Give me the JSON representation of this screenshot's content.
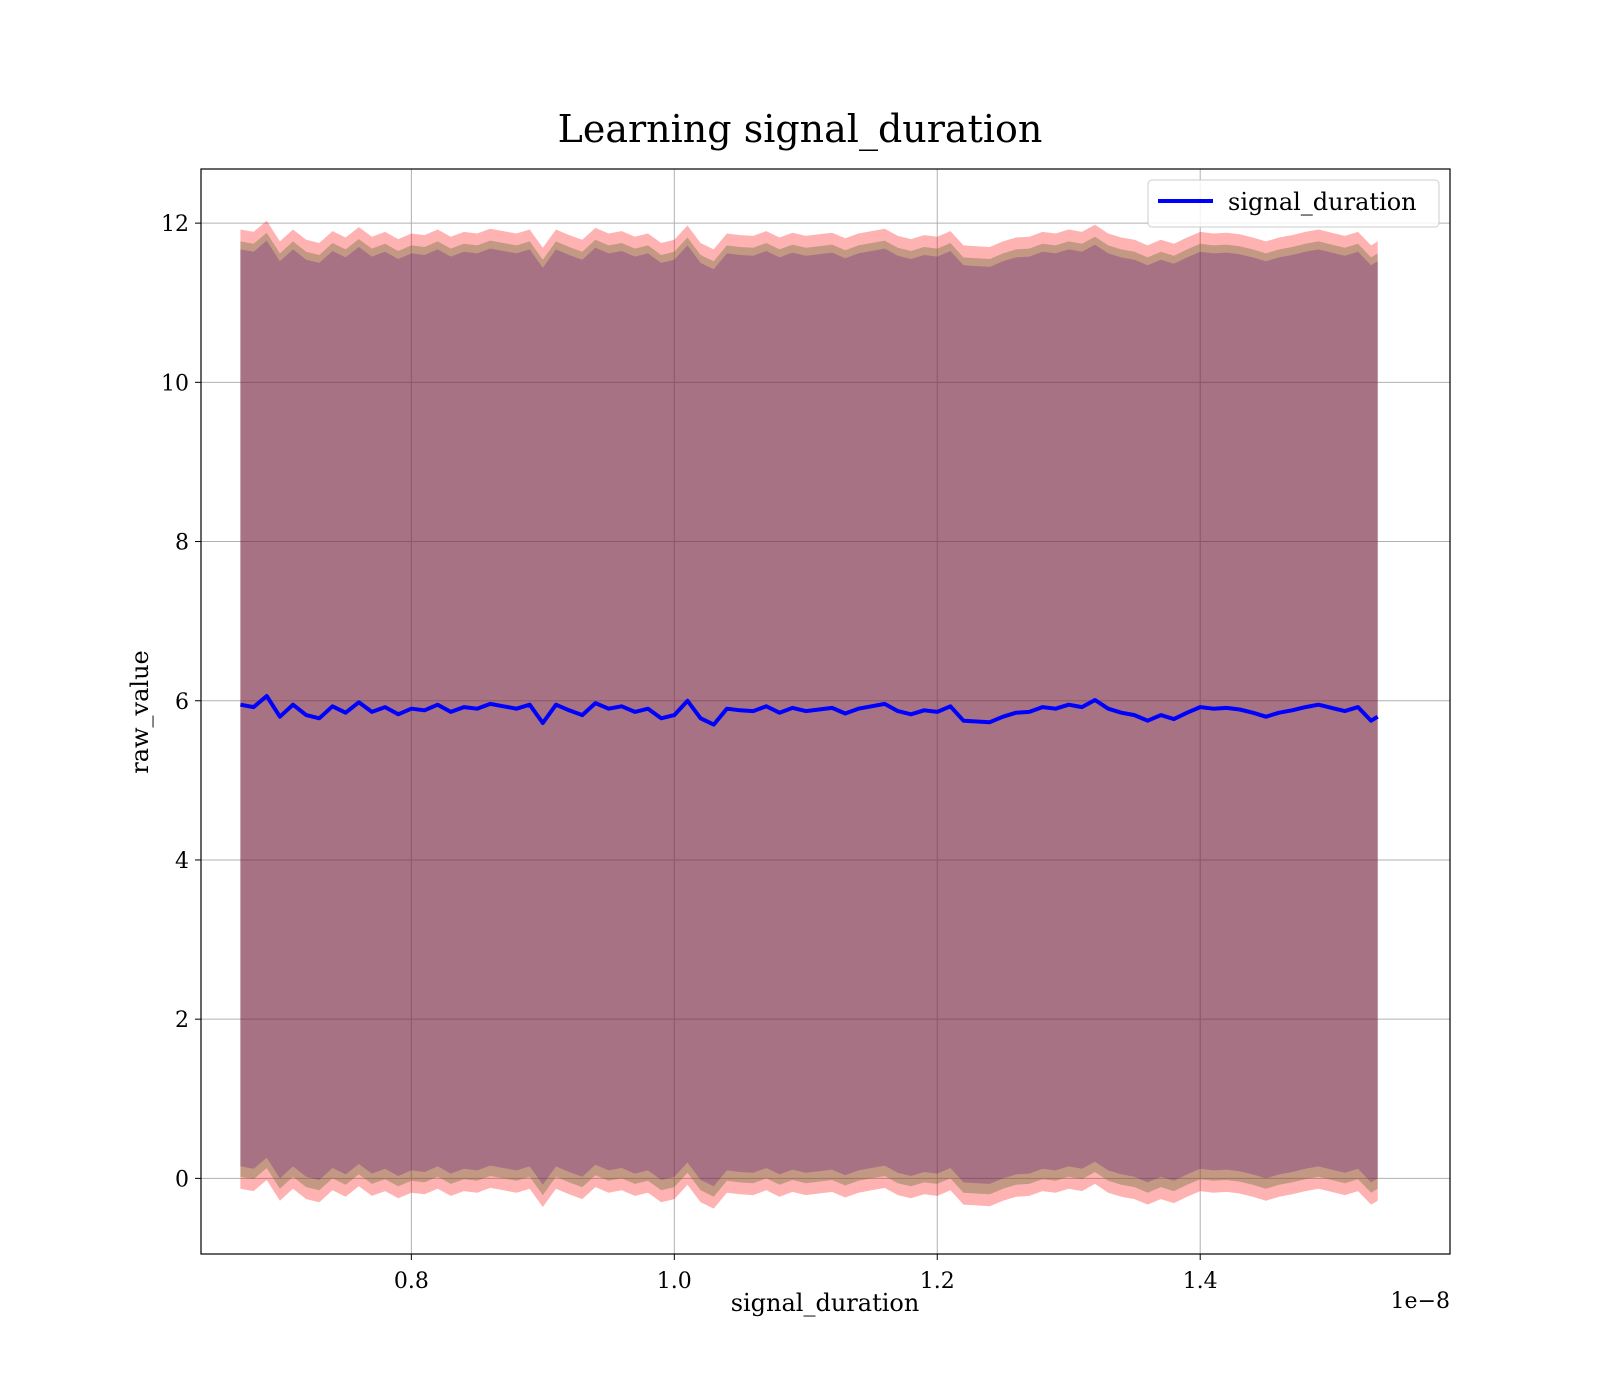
{
  "chart_data": {
    "type": "line",
    "title": "Learning signal_duration",
    "xlabel": "signal_duration",
    "ylabel": "raw_value",
    "x_scale_label": "1e−8",
    "xlim": [
      0.64,
      1.59
    ],
    "ylim": [
      -0.95,
      12.68
    ],
    "x_ticks": [
      {
        "value": 0.8,
        "label": "0.8"
      },
      {
        "value": 1.0,
        "label": "1.0"
      },
      {
        "value": 1.2,
        "label": "1.2"
      },
      {
        "value": 1.4,
        "label": "1.4"
      }
    ],
    "y_ticks": [
      {
        "value": 0,
        "label": "0"
      },
      {
        "value": 2,
        "label": "2"
      },
      {
        "value": 4,
        "label": "4"
      },
      {
        "value": 6,
        "label": "6"
      },
      {
        "value": 8,
        "label": "8"
      },
      {
        "value": 10,
        "label": "10"
      },
      {
        "value": 12,
        "label": "12"
      }
    ],
    "grid": true,
    "legend_position": "top-right",
    "series": [
      {
        "name": "signal_duration",
        "color": "#0000ff",
        "x": [
          0.67,
          0.68,
          0.69,
          0.7,
          0.71,
          0.72,
          0.73,
          0.74,
          0.75,
          0.76,
          0.77,
          0.78,
          0.79,
          0.8,
          0.81,
          0.82,
          0.83,
          0.84,
          0.85,
          0.86,
          0.87,
          0.88,
          0.89,
          0.9,
          0.91,
          0.92,
          0.93,
          0.94,
          0.95,
          0.96,
          0.97,
          0.98,
          0.99,
          1.0,
          1.01,
          1.02,
          1.03,
          1.04,
          1.05,
          1.06,
          1.07,
          1.08,
          1.09,
          1.1,
          1.11,
          1.12,
          1.13,
          1.14,
          1.15,
          1.16,
          1.17,
          1.18,
          1.19,
          1.2,
          1.21,
          1.22,
          1.23,
          1.24,
          1.25,
          1.26,
          1.27,
          1.28,
          1.29,
          1.3,
          1.31,
          1.32,
          1.33,
          1.34,
          1.35,
          1.36,
          1.37,
          1.38,
          1.39,
          1.4,
          1.41,
          1.42,
          1.43,
          1.44,
          1.45,
          1.46,
          1.47,
          1.48,
          1.49,
          1.5,
          1.51,
          1.52,
          1.53,
          1.535
        ],
        "y": [
          5.95,
          5.92,
          6.06,
          5.8,
          5.95,
          5.82,
          5.78,
          5.93,
          5.85,
          5.98,
          5.86,
          5.92,
          5.83,
          5.9,
          5.88,
          5.95,
          5.86,
          5.92,
          5.9,
          5.96,
          5.93,
          5.9,
          5.95,
          5.72,
          5.95,
          5.88,
          5.82,
          5.97,
          5.9,
          5.93,
          5.86,
          5.9,
          5.78,
          5.82,
          6.0,
          5.78,
          5.7,
          5.9,
          5.88,
          5.87,
          5.93,
          5.85,
          5.91,
          5.87,
          5.89,
          5.91,
          5.84,
          5.9,
          5.93,
          5.96,
          5.87,
          5.83,
          5.88,
          5.86,
          5.93,
          5.75,
          5.74,
          5.73,
          5.8,
          5.85,
          5.86,
          5.92,
          5.9,
          5.95,
          5.92,
          6.01,
          5.9,
          5.85,
          5.82,
          5.75,
          5.82,
          5.77,
          5.85,
          5.92,
          5.9,
          5.91,
          5.89,
          5.85,
          5.8,
          5.85,
          5.88,
          5.92,
          5.95,
          5.91,
          5.87,
          5.92,
          5.75,
          5.8
        ]
      }
    ],
    "bands": [
      {
        "color": "#ff0000",
        "opacity": 0.3,
        "offset_upper": 5.97,
        "offset_lower": 6.08
      },
      {
        "color": "#556b2f",
        "opacity": 0.35,
        "offset_upper": 5.82,
        "offset_lower": 5.93
      },
      {
        "color": "#4b0082",
        "opacity": 0.25,
        "offset_upper": 5.72,
        "offset_lower": 5.8
      }
    ]
  }
}
